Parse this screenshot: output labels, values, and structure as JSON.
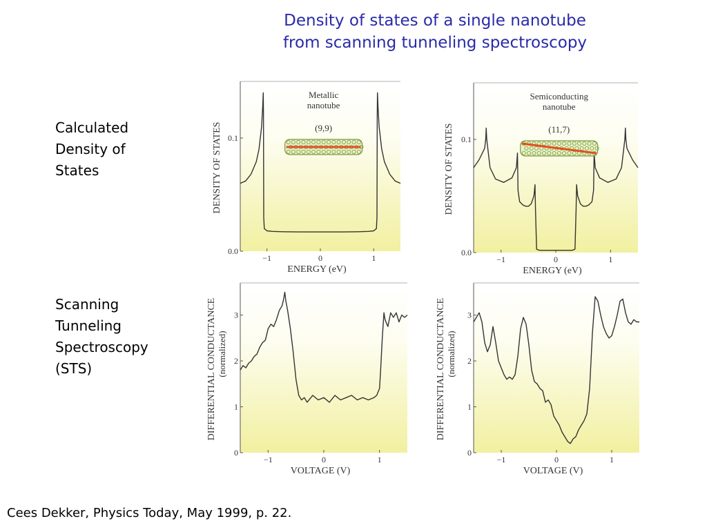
{
  "title_line1": "Density of states of a single nanotube",
  "title_line2": "from scanning tunneling spectroscopy",
  "row_labels": {
    "top": [
      "Calculated",
      "Density of",
      "States"
    ],
    "bottom": [
      "Scanning",
      "Tunneling",
      "Spectroscopy",
      "(STS)"
    ]
  },
  "citation": "Cees Dekker, Physics Today, May 1999, p. 22.",
  "colors": {
    "title": "#2a2aa8",
    "curve": "#333333",
    "tube_line": "#e05020",
    "tube_mesh": "#7a9a3a",
    "panel_gradient_bottom": "#f2f0a0"
  },
  "chart_data": [
    {
      "type": "line",
      "annotation": [
        "Metallic",
        "nanotube"
      ],
      "index_label": "(9,9)",
      "icon": "nanotube-armchair-icon",
      "xlabel": "ENERGY (eV)",
      "ylabel": "DENSITY OF STATES",
      "xlim": [
        -1.5,
        1.5
      ],
      "ylim": [
        0.0,
        0.15
      ],
      "xticks": [
        -1,
        0,
        1
      ],
      "xtick_labels": [
        "−1",
        "0",
        "1"
      ],
      "yticks": [
        0.0,
        0.1
      ],
      "ytick_labels": [
        "0.0",
        "0.1"
      ],
      "series": [
        {
          "x": [
            -1.5,
            -1.4,
            -1.3,
            -1.2,
            -1.15,
            -1.1,
            -1.08,
            -1.07,
            -1.065,
            -1.06,
            -1.05,
            -1.0,
            -0.9,
            -0.7,
            -0.4,
            0.0,
            0.4,
            0.7,
            0.9,
            1.0,
            1.05,
            1.06,
            1.065,
            1.07,
            1.08,
            1.1,
            1.15,
            1.2,
            1.3,
            1.4,
            1.5
          ],
          "y": [
            0.06,
            0.062,
            0.068,
            0.079,
            0.09,
            0.11,
            0.128,
            0.14,
            0.122,
            0.03,
            0.02,
            0.018,
            0.0175,
            0.0172,
            0.017,
            0.017,
            0.017,
            0.0172,
            0.0175,
            0.018,
            0.02,
            0.03,
            0.122,
            0.14,
            0.128,
            0.11,
            0.09,
            0.079,
            0.068,
            0.062,
            0.06
          ]
        }
      ]
    },
    {
      "type": "line",
      "annotation": [
        "Semiconducting",
        "nanotube"
      ],
      "index_label": "(11,7)",
      "icon": "nanotube-chiral-icon",
      "xlabel": "ENERGY (eV)",
      "ylabel": "DENSITY OF STATES",
      "xlim": [
        -1.5,
        1.5
      ],
      "ylim": [
        0.0,
        0.15
      ],
      "xticks": [
        -1,
        0,
        1
      ],
      "xtick_labels": [
        "−1",
        "0",
        "1"
      ],
      "yticks": [
        0.0,
        0.1
      ],
      "ytick_labels": [
        "0.0",
        "0.1"
      ],
      "series": [
        {
          "x": [
            -1.5,
            -1.4,
            -1.3,
            -1.28,
            -1.27,
            -1.26,
            -1.2,
            -1.1,
            -0.95,
            -0.8,
            -0.72,
            -0.7,
            -0.69,
            -0.66,
            -0.6,
            -0.55,
            -0.5,
            -0.45,
            -0.4,
            -0.38,
            -0.37,
            -0.35,
            -0.3,
            -0.2,
            0.0,
            0.2,
            0.3,
            0.35,
            0.37,
            0.38,
            0.4,
            0.45,
            0.5,
            0.55,
            0.6,
            0.66,
            0.69,
            0.7,
            0.72,
            0.8,
            0.95,
            1.1,
            1.2,
            1.26,
            1.27,
            1.28,
            1.3,
            1.4,
            1.5
          ],
          "y": [
            0.075,
            0.082,
            0.092,
            0.1,
            0.11,
            0.1,
            0.075,
            0.065,
            0.062,
            0.066,
            0.075,
            0.088,
            0.055,
            0.045,
            0.042,
            0.041,
            0.041,
            0.043,
            0.05,
            0.06,
            0.038,
            0.003,
            0.002,
            0.002,
            0.002,
            0.002,
            0.002,
            0.003,
            0.038,
            0.06,
            0.05,
            0.043,
            0.041,
            0.041,
            0.042,
            0.045,
            0.055,
            0.088,
            0.075,
            0.066,
            0.062,
            0.065,
            0.075,
            0.1,
            0.11,
            0.1,
            0.092,
            0.082,
            0.075
          ]
        }
      ]
    },
    {
      "type": "line",
      "xlabel": "VOLTAGE (V)",
      "ylabel": "DIFFERENTIAL CONDUCTANCE",
      "ylabel2": "(normalized)",
      "xlim": [
        -1.5,
        1.5
      ],
      "ylim": [
        0,
        3.7
      ],
      "xticks": [
        -1,
        0,
        1
      ],
      "xtick_labels": [
        "−1",
        "0",
        "1"
      ],
      "yticks": [
        0,
        1,
        2,
        3
      ],
      "ytick_labels": [
        "0",
        "1",
        "2",
        "3"
      ],
      "series": [
        {
          "x": [
            -1.5,
            -1.45,
            -1.4,
            -1.35,
            -1.3,
            -1.25,
            -1.2,
            -1.15,
            -1.1,
            -1.05,
            -1.0,
            -0.95,
            -0.9,
            -0.85,
            -0.8,
            -0.75,
            -0.72,
            -0.7,
            -0.68,
            -0.65,
            -0.6,
            -0.55,
            -0.5,
            -0.45,
            -0.4,
            -0.35,
            -0.3,
            -0.2,
            -0.1,
            0.0,
            0.1,
            0.2,
            0.3,
            0.4,
            0.5,
            0.6,
            0.7,
            0.8,
            0.9,
            0.95,
            1.0,
            1.02,
            1.05,
            1.08,
            1.1,
            1.15,
            1.2,
            1.25,
            1.3,
            1.35,
            1.4,
            1.45,
            1.5
          ],
          "y": [
            1.8,
            1.9,
            1.85,
            1.95,
            2.0,
            2.1,
            2.15,
            2.3,
            2.4,
            2.45,
            2.7,
            2.8,
            2.75,
            2.9,
            3.1,
            3.2,
            3.35,
            3.5,
            3.3,
            3.1,
            2.7,
            2.2,
            1.6,
            1.25,
            1.15,
            1.2,
            1.1,
            1.25,
            1.15,
            1.2,
            1.1,
            1.25,
            1.15,
            1.2,
            1.25,
            1.15,
            1.2,
            1.15,
            1.2,
            1.25,
            1.4,
            1.8,
            2.5,
            3.05,
            2.9,
            2.75,
            3.05,
            2.95,
            3.05,
            2.85,
            3.0,
            2.95,
            3.0
          ]
        }
      ]
    },
    {
      "type": "line",
      "xlabel": "VOLTAGE (V)",
      "ylabel": "DIFFERENTIAL CONDUCTANCE",
      "ylabel2": "(normalized)",
      "xlim": [
        -1.5,
        1.5
      ],
      "ylim": [
        0,
        3.7
      ],
      "xticks": [
        -1,
        0,
        1
      ],
      "xtick_labels": [
        "−1",
        "0",
        "1"
      ],
      "yticks": [
        0,
        1,
        2,
        3
      ],
      "ytick_labels": [
        "0",
        "1",
        "2",
        "3"
      ],
      "series": [
        {
          "x": [
            -1.5,
            -1.45,
            -1.4,
            -1.35,
            -1.3,
            -1.25,
            -1.2,
            -1.15,
            -1.1,
            -1.05,
            -1.0,
            -0.95,
            -0.9,
            -0.85,
            -0.8,
            -0.75,
            -0.7,
            -0.65,
            -0.6,
            -0.55,
            -0.5,
            -0.45,
            -0.4,
            -0.35,
            -0.3,
            -0.25,
            -0.2,
            -0.15,
            -0.1,
            -0.05,
            0.0,
            0.05,
            0.1,
            0.15,
            0.2,
            0.25,
            0.3,
            0.35,
            0.4,
            0.45,
            0.5,
            0.55,
            0.6,
            0.65,
            0.7,
            0.75,
            0.8,
            0.85,
            0.9,
            0.95,
            1.0,
            1.05,
            1.1,
            1.15,
            1.2,
            1.25,
            1.3,
            1.35,
            1.4,
            1.45,
            1.5
          ],
          "y": [
            2.85,
            2.95,
            3.05,
            2.85,
            2.4,
            2.2,
            2.35,
            2.75,
            2.4,
            2.0,
            1.85,
            1.7,
            1.6,
            1.65,
            1.6,
            1.7,
            2.1,
            2.7,
            2.95,
            2.8,
            2.35,
            1.8,
            1.55,
            1.5,
            1.4,
            1.35,
            1.1,
            1.15,
            1.05,
            0.8,
            0.7,
            0.6,
            0.45,
            0.35,
            0.25,
            0.2,
            0.3,
            0.35,
            0.5,
            0.6,
            0.7,
            0.85,
            1.4,
            2.6,
            3.4,
            3.3,
            3.0,
            2.75,
            2.6,
            2.5,
            2.55,
            2.75,
            3.0,
            3.3,
            3.35,
            3.05,
            2.85,
            2.8,
            2.9,
            2.85,
            2.85
          ]
        }
      ]
    }
  ]
}
